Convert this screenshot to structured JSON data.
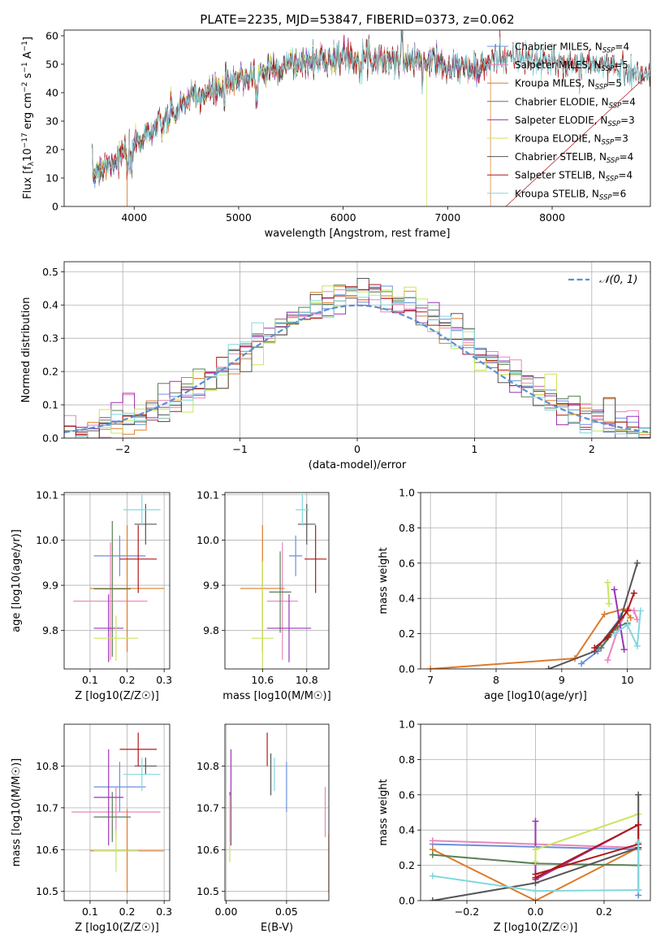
{
  "title": "PLATE=2235, MJD=53847, FIBERID=0373, z=0.062",
  "colors": {
    "chabrier_miles": "#6a8fdc",
    "salpeter_miles": "#e985bd",
    "kroupa_miles": "#de7a2a",
    "chabrier_elodie": "#5a7f55",
    "salpeter_elodie": "#9b35b5",
    "kroupa_elodie": "#c8e65a",
    "chabrier_stelib": "#555555",
    "salpeter_stelib": "#b01818",
    "kroupa_stelib": "#82d8de",
    "normal": "#5b8fd8"
  },
  "chart_data": [
    {
      "id": "spectrum",
      "type": "line",
      "xlabel": "wavelength [Angstrom, rest frame]",
      "ylabel_parts": [
        "Flux [f",
        "λ",
        "10",
        "−17",
        " erg cm",
        "−2",
        " s",
        "−1",
        " A",
        "−1",
        "]"
      ],
      "xlim": [
        3330,
        8940
      ],
      "ylim": [
        0,
        62
      ],
      "xticks": [
        "4000",
        "5000",
        "6000",
        "7000",
        "8000"
      ],
      "yticks": [
        "0",
        "10",
        "20",
        "30",
        "40",
        "50",
        "60"
      ],
      "continuum": [
        [
          3600,
          12
        ],
        [
          3800,
          16
        ],
        [
          3950,
          20
        ],
        [
          4100,
          25
        ],
        [
          4300,
          30
        ],
        [
          4500,
          37
        ],
        [
          4700,
          40
        ],
        [
          4900,
          43
        ],
        [
          5100,
          46
        ],
        [
          5300,
          48
        ],
        [
          5500,
          50
        ],
        [
          5700,
          51
        ],
        [
          5900,
          52
        ],
        [
          6100,
          52.5
        ],
        [
          6300,
          52
        ],
        [
          6500,
          51.5
        ],
        [
          6700,
          51
        ],
        [
          6900,
          51
        ],
        [
          7100,
          49
        ],
        [
          7300,
          48
        ],
        [
          7500,
          53
        ],
        [
          7700,
          52
        ],
        [
          7900,
          51
        ],
        [
          8100,
          50
        ],
        [
          8300,
          50
        ],
        [
          8500,
          50
        ],
        [
          8700,
          48
        ],
        [
          8900,
          46
        ]
      ],
      "series": [
        {
          "name_base": "Chabrier MILES",
          "nssp": "4",
          "color_key": "chabrier_miles"
        },
        {
          "name_base": "Salpeter MILES",
          "nssp": "5",
          "color_key": "salpeter_miles"
        },
        {
          "name_base": "Kroupa MILES",
          "nssp": "5",
          "color_key": "kroupa_miles"
        },
        {
          "name_base": "Chabrier ELODIE",
          "nssp": "4",
          "color_key": "chabrier_elodie"
        },
        {
          "name_base": "Salpeter ELODIE",
          "nssp": "3",
          "color_key": "salpeter_elodie"
        },
        {
          "name_base": "Kroupa ELODIE",
          "nssp": "3",
          "color_key": "kroupa_elodie"
        },
        {
          "name_base": "Chabrier STELIB",
          "nssp": "4",
          "color_key": "chabrier_stelib"
        },
        {
          "name_base": "Salpeter STELIB",
          "nssp": "4",
          "color_key": "salpeter_stelib"
        },
        {
          "name_base": "Kroupa STELIB",
          "nssp": "6",
          "color_key": "kroupa_stelib"
        }
      ]
    },
    {
      "id": "residuals",
      "type": "histogram",
      "xlabel": "(data-model)/error",
      "ylabel": "Normed distribution",
      "xlim": [
        -2.5,
        2.5
      ],
      "ylim": [
        0,
        0.53
      ],
      "xticks": [
        "−2",
        "−1",
        "0",
        "1",
        "2"
      ],
      "yticks": [
        "0.0",
        "0.1",
        "0.2",
        "0.3",
        "0.4",
        "0.5"
      ],
      "legend": "N(0,1)",
      "legend_location": "upper right",
      "bins": 50
    },
    {
      "id": "age_vs_Z",
      "type": "errorbar",
      "xlabel": "Z [log10(Z/Z☉)]",
      "ylabel": "age  [log10(age/yr)]",
      "xlim": [
        0.03,
        0.315
      ],
      "ylim": [
        9.715,
        10.105
      ],
      "xticks": [
        "0.1",
        "0.2",
        "0.3"
      ],
      "yticks": [
        "9.8",
        "9.9",
        "10.0",
        "10.1"
      ],
      "points": [
        {
          "color_key": "chabrier_miles",
          "x": 0.18,
          "xerr": 0.07,
          "y": 9.965,
          "yerr": 0.045
        },
        {
          "color_key": "salpeter_miles",
          "x": 0.155,
          "xerr": 0.1,
          "y": 9.865,
          "yerr": 0.13
        },
        {
          "color_key": "kroupa_miles",
          "x": 0.2,
          "xerr": 0.1,
          "y": 9.893,
          "yerr": 0.14
        },
        {
          "color_key": "chabrier_elodie",
          "x": 0.16,
          "xerr": 0.05,
          "y": 9.892,
          "yerr": 0.15
        },
        {
          "color_key": "salpeter_elodie",
          "x": 0.15,
          "xerr": 0.04,
          "y": 9.805,
          "yerr": 0.075
        },
        {
          "color_key": "kroupa_elodie",
          "x": 0.17,
          "xerr": 0.06,
          "y": 9.783,
          "yerr": 0.05
        },
        {
          "color_key": "chabrier_stelib",
          "x": 0.25,
          "xerr": 0.03,
          "y": 10.035,
          "yerr": 0.045
        },
        {
          "color_key": "salpeter_stelib",
          "x": 0.23,
          "xerr": 0.05,
          "y": 9.958,
          "yerr": 0.075
        },
        {
          "color_key": "kroupa_stelib",
          "x": 0.24,
          "xerr": 0.05,
          "y": 10.067,
          "yerr": 0.035
        }
      ]
    },
    {
      "id": "age_vs_mass",
      "type": "errorbar",
      "xlabel": "mass [log10(M/M☉)]",
      "ylabel": "",
      "xlim": [
        10.43,
        10.9
      ],
      "ylim": [
        9.715,
        10.105
      ],
      "xticks": [
        "10.6",
        "10.8"
      ],
      "yticks": [
        "9.8",
        "9.9",
        "10.0",
        "10.1"
      ],
      "points": [
        {
          "color_key": "chabrier_miles",
          "x": 10.75,
          "xerr": 0.03,
          "y": 9.965,
          "yerr": 0.045
        },
        {
          "color_key": "salpeter_miles",
          "x": 10.69,
          "xerr": 0.07,
          "y": 9.865,
          "yerr": 0.13
        },
        {
          "color_key": "kroupa_miles",
          "x": 10.6,
          "xerr": 0.1,
          "y": 9.893,
          "yerr": 0.14
        },
        {
          "color_key": "chabrier_elodie",
          "x": 10.68,
          "xerr": 0.05,
          "y": 9.885,
          "yerr": 0.09
        },
        {
          "color_key": "salpeter_elodie",
          "x": 10.72,
          "xerr": 0.1,
          "y": 9.805,
          "yerr": 0.075
        },
        {
          "color_key": "kroupa_elodie",
          "x": 10.6,
          "xerr": 0.05,
          "y": 9.783,
          "yerr": 0.17
        },
        {
          "color_key": "chabrier_stelib",
          "x": 10.8,
          "xerr": 0.04,
          "y": 10.035,
          "yerr": 0.045
        },
        {
          "color_key": "salpeter_stelib",
          "x": 10.84,
          "xerr": 0.05,
          "y": 9.958,
          "yerr": 0.075
        },
        {
          "color_key": "kroupa_stelib",
          "x": 10.78,
          "xerr": 0.03,
          "y": 10.067,
          "yerr": 0.035
        }
      ]
    },
    {
      "id": "weight_vs_age",
      "type": "line",
      "xlabel": "age  [log10(age/yr)]",
      "ylabel": "mass weight",
      "xlim": [
        6.85,
        10.35
      ],
      "ylim": [
        0,
        1
      ],
      "xticks": [
        "7",
        "8",
        "9",
        "10"
      ],
      "yticks": [
        "0.0",
        "0.2",
        "0.4",
        "0.6",
        "0.8",
        "1.0"
      ],
      "series": [
        {
          "color_key": "chabrier_miles",
          "points": [
            [
              9.3,
              0.03
            ],
            [
              9.55,
              0.1
            ],
            [
              9.75,
              0.2
            ],
            [
              9.9,
              0.3
            ]
          ]
        },
        {
          "color_key": "salpeter_miles",
          "points": [
            [
              9.7,
              0.05
            ],
            [
              9.85,
              0.22
            ],
            [
              10.0,
              0.34
            ],
            [
              10.1,
              0.33
            ],
            [
              10.15,
              0.28
            ]
          ]
        },
        {
          "color_key": "kroupa_miles",
          "points": [
            [
              7.0,
              0.0
            ],
            [
              9.2,
              0.06
            ],
            [
              9.65,
              0.31
            ],
            [
              9.95,
              0.34
            ],
            [
              10.05,
              0.29
            ]
          ]
        },
        {
          "color_key": "chabrier_elodie",
          "points": [
            [
              9.6,
              0.12
            ],
            [
              9.85,
              0.24
            ],
            [
              10.0,
              0.26
            ]
          ]
        },
        {
          "color_key": "salpeter_elodie",
          "points": [
            [
              9.8,
              0.45
            ],
            [
              9.95,
              0.11
            ]
          ]
        },
        {
          "color_key": "kroupa_elodie",
          "points": [
            [
              9.7,
              0.49
            ],
            [
              9.72,
              0.37
            ]
          ]
        },
        {
          "color_key": "chabrier_stelib",
          "points": [
            [
              8.8,
              0.0
            ],
            [
              9.5,
              0.1
            ],
            [
              9.9,
              0.29
            ],
            [
              10.15,
              0.6
            ]
          ]
        },
        {
          "color_key": "salpeter_stelib",
          "points": [
            [
              9.5,
              0.12
            ],
            [
              9.7,
              0.18
            ],
            [
              10.0,
              0.33
            ],
            [
              10.1,
              0.43
            ]
          ]
        },
        {
          "color_key": "kroupa_stelib",
          "points": [
            [
              9.8,
              0.2
            ],
            [
              10.0,
              0.25
            ],
            [
              10.15,
              0.13
            ],
            [
              10.2,
              0.33
            ]
          ]
        }
      ]
    },
    {
      "id": "mass_vs_Z",
      "type": "errorbar",
      "xlabel": "Z [log10(Z/Z☉)]",
      "ylabel": "mass [log10(M/M☉)]",
      "xlim": [
        0.03,
        0.315
      ],
      "ylim": [
        10.478,
        10.9
      ],
      "xticks": [
        "0.1",
        "0.2",
        "0.3"
      ],
      "yticks": [
        "10.5",
        "10.6",
        "10.7",
        "10.8"
      ],
      "points": [
        {
          "color_key": "chabrier_miles",
          "x": 0.18,
          "xerr": 0.07,
          "y": 10.75,
          "yerr": 0.06
        },
        {
          "color_key": "salpeter_miles",
          "x": 0.17,
          "xerr": 0.12,
          "y": 10.69,
          "yerr": 0.06
        },
        {
          "color_key": "kroupa_miles",
          "x": 0.2,
          "xerr": 0.1,
          "y": 10.597,
          "yerr": 0.1
        },
        {
          "color_key": "chabrier_elodie",
          "x": 0.16,
          "xerr": 0.05,
          "y": 10.678,
          "yerr": 0.06
        },
        {
          "color_key": "salpeter_elodie",
          "x": 0.15,
          "xerr": 0.04,
          "y": 10.725,
          "yerr": 0.115
        },
        {
          "color_key": "kroupa_elodie",
          "x": 0.17,
          "xerr": 0.06,
          "y": 10.597,
          "yerr": 0.05
        },
        {
          "color_key": "chabrier_stelib",
          "x": 0.25,
          "xerr": 0.03,
          "y": 10.8,
          "yerr": 0.02
        },
        {
          "color_key": "salpeter_stelib",
          "x": 0.23,
          "xerr": 0.05,
          "y": 10.84,
          "yerr": 0.04
        },
        {
          "color_key": "kroupa_stelib",
          "x": 0.24,
          "xerr": 0.05,
          "y": 10.78,
          "yerr": 0.04
        }
      ]
    },
    {
      "id": "mass_vs_EBV",
      "type": "errorbar",
      "xlabel": "E(B-V)",
      "ylabel": "",
      "xlim": [
        -0.001,
        0.085
      ],
      "ylim": [
        10.478,
        10.9
      ],
      "xticks": [
        "0.00",
        "0.05"
      ],
      "yticks": [
        "10.5",
        "10.6",
        "10.7",
        "10.8"
      ],
      "points": [
        {
          "color_key": "chabrier_miles",
          "x": 0.05,
          "yerr": 0.06,
          "y": 10.75
        },
        {
          "color_key": "salpeter_miles",
          "x": 0.082,
          "yerr": 0.06,
          "y": 10.69
        },
        {
          "color_key": "kroupa_miles",
          "x": 0.085,
          "yerr": 0.07,
          "y": 10.567
        },
        {
          "color_key": "chabrier_elodie",
          "x": 0.003,
          "yerr": 0.06,
          "y": 10.678
        },
        {
          "color_key": "salpeter_elodie",
          "x": 0.004,
          "yerr": 0.115,
          "y": 10.725
        },
        {
          "color_key": "kroupa_elodie",
          "x": 0.003,
          "yerr": 0.08,
          "y": 10.65
        },
        {
          "color_key": "chabrier_stelib",
          "x": 0.037,
          "yerr": 0.05,
          "y": 10.78
        },
        {
          "color_key": "salpeter_stelib",
          "x": 0.034,
          "yerr": 0.04,
          "y": 10.84
        },
        {
          "color_key": "kroupa_stelib",
          "x": 0.04,
          "yerr": 0.04,
          "y": 10.78
        }
      ]
    },
    {
      "id": "weight_vs_Z",
      "type": "line",
      "xlabel": "Z [log10(Z/Z☉)]",
      "ylabel": "mass weight",
      "xlim": [
        -0.335,
        0.335
      ],
      "ylim": [
        0,
        1
      ],
      "xticks": [
        "−0.2",
        "0.0",
        "0.2"
      ],
      "yticks": [
        "0.0",
        "0.2",
        "0.4",
        "0.6",
        "0.8",
        "1.0"
      ],
      "series": [
        {
          "color_key": "chabrier_miles",
          "points": [
            [
              -0.3,
              0.32
            ],
            [
              0.3,
              0.29
            ],
            [
              0.3,
              0.03
            ]
          ]
        },
        {
          "color_key": "salpeter_miles",
          "points": [
            [
              -0.3,
              0.34
            ],
            [
              0.3,
              0.3
            ],
            [
              0.3,
              0.06
            ]
          ]
        },
        {
          "color_key": "kroupa_miles",
          "points": [
            [
              -0.3,
              0.29
            ],
            [
              0.0,
              0.0
            ],
            [
              0.3,
              0.3
            ]
          ]
        },
        {
          "color_key": "chabrier_elodie",
          "points": [
            [
              -0.3,
              0.26
            ],
            [
              0.0,
              0.21
            ],
            [
              0.3,
              0.2
            ]
          ]
        },
        {
          "color_key": "salpeter_elodie",
          "points": [
            [
              0.0,
              0.45
            ],
            [
              0.0,
              0.12
            ],
            [
              0.3,
              0.43
            ]
          ]
        },
        {
          "color_key": "kroupa_elodie",
          "points": [
            [
              0.0,
              0.22
            ],
            [
              0.0,
              0.29
            ],
            [
              0.3,
              0.49
            ]
          ]
        },
        {
          "color_key": "chabrier_stelib",
          "points": [
            [
              -0.3,
              0.0
            ],
            [
              0.0,
              0.1
            ],
            [
              0.3,
              0.3
            ],
            [
              0.3,
              0.6
            ]
          ]
        },
        {
          "color_key": "salpeter_stelib",
          "points": [
            [
              0.0,
              0.15
            ],
            [
              0.3,
              0.32
            ],
            [
              0.3,
              0.43
            ],
            [
              0.0,
              0.13
            ]
          ]
        },
        {
          "color_key": "kroupa_stelib",
          "points": [
            [
              -0.3,
              0.14
            ],
            [
              0.0,
              0.055
            ],
            [
              0.3,
              0.06
            ],
            [
              0.3,
              0.33
            ]
          ]
        }
      ]
    }
  ]
}
